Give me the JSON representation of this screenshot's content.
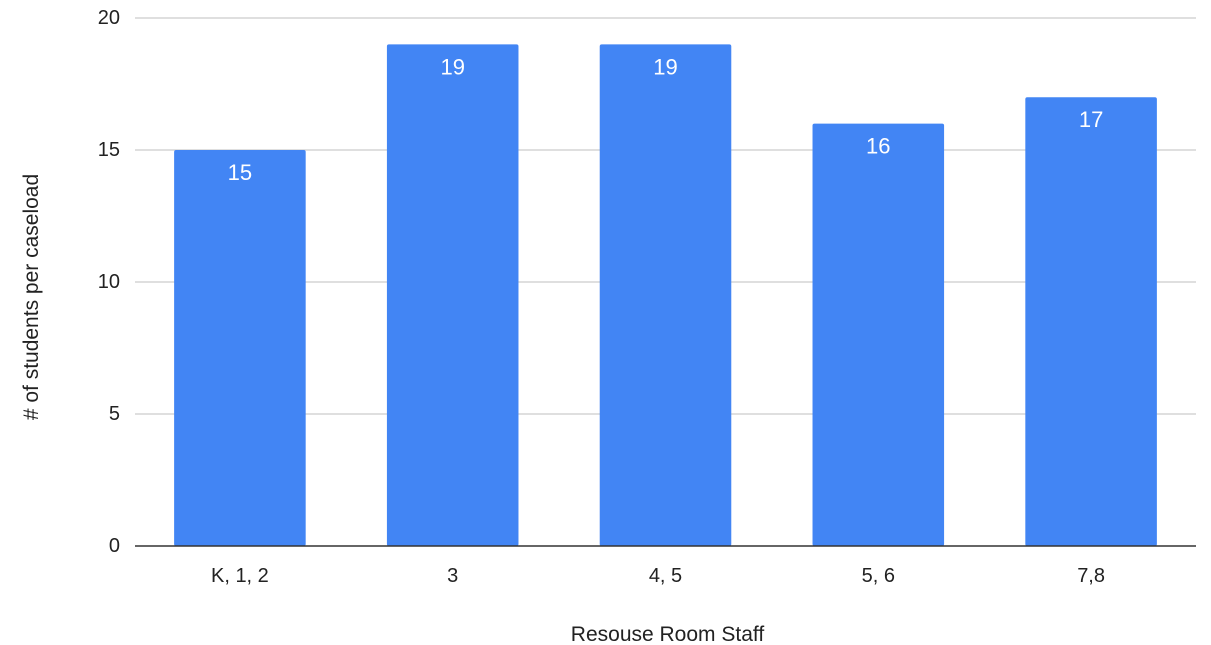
{
  "chart_data": {
    "type": "bar",
    "title": "",
    "xlabel": "Resouse Room Staff",
    "ylabel": "# of students per caseload",
    "categories": [
      "K, 1, 2",
      "3",
      "4, 5",
      "5, 6",
      "7,8"
    ],
    "values": [
      15,
      19,
      19,
      16,
      17
    ],
    "data_labels": [
      "15",
      "19",
      "19",
      "16",
      "17"
    ],
    "ylim": [
      0,
      20
    ],
    "yticks": [
      0,
      5,
      10,
      15,
      20
    ],
    "ytick_labels": [
      "0",
      "5",
      "10",
      "15",
      "20"
    ],
    "grid": true,
    "legend": "none",
    "bar_color": "#4285f4"
  }
}
